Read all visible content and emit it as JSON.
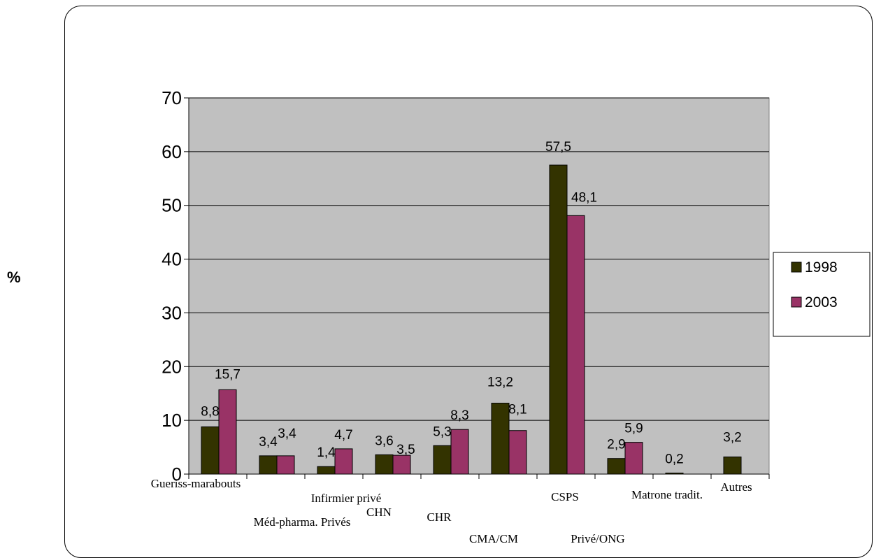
{
  "chart_data": {
    "type": "bar",
    "ylabel": "%",
    "ylim": [
      0,
      70
    ],
    "yticks": [
      0,
      10,
      20,
      30,
      40,
      50,
      60,
      70
    ],
    "grid": true,
    "legend_position": "right",
    "categories": [
      "Gueriss-marabouts",
      "Méd-pharma. Privés",
      "Infirmier privé",
      "CHN",
      "CHR",
      "CMA/CM",
      "CSPS",
      "Privé/ONG",
      "Matrone tradit.",
      "Autres"
    ],
    "series": [
      {
        "name": "1998",
        "color": "#333300",
        "values": [
          8.8,
          3.4,
          1.4,
          3.6,
          5.3,
          13.2,
          57.5,
          2.9,
          0.2,
          3.2
        ],
        "labels": [
          "8,8",
          "3,4",
          "1,4",
          "3,6",
          "5,3",
          "13,2",
          "57,5",
          "2,9",
          "0,2",
          "3,2"
        ]
      },
      {
        "name": "2003",
        "color": "#993366",
        "values": [
          15.7,
          3.4,
          4.7,
          3.5,
          8.3,
          8.1,
          48.1,
          5.9,
          null,
          null
        ],
        "labels": [
          "15,7",
          "3,4",
          "4,7",
          "3,5",
          "8,3",
          "8,1",
          "48,1",
          "5,9",
          null,
          null
        ]
      }
    ],
    "plot_background": "#c0c0c0"
  }
}
